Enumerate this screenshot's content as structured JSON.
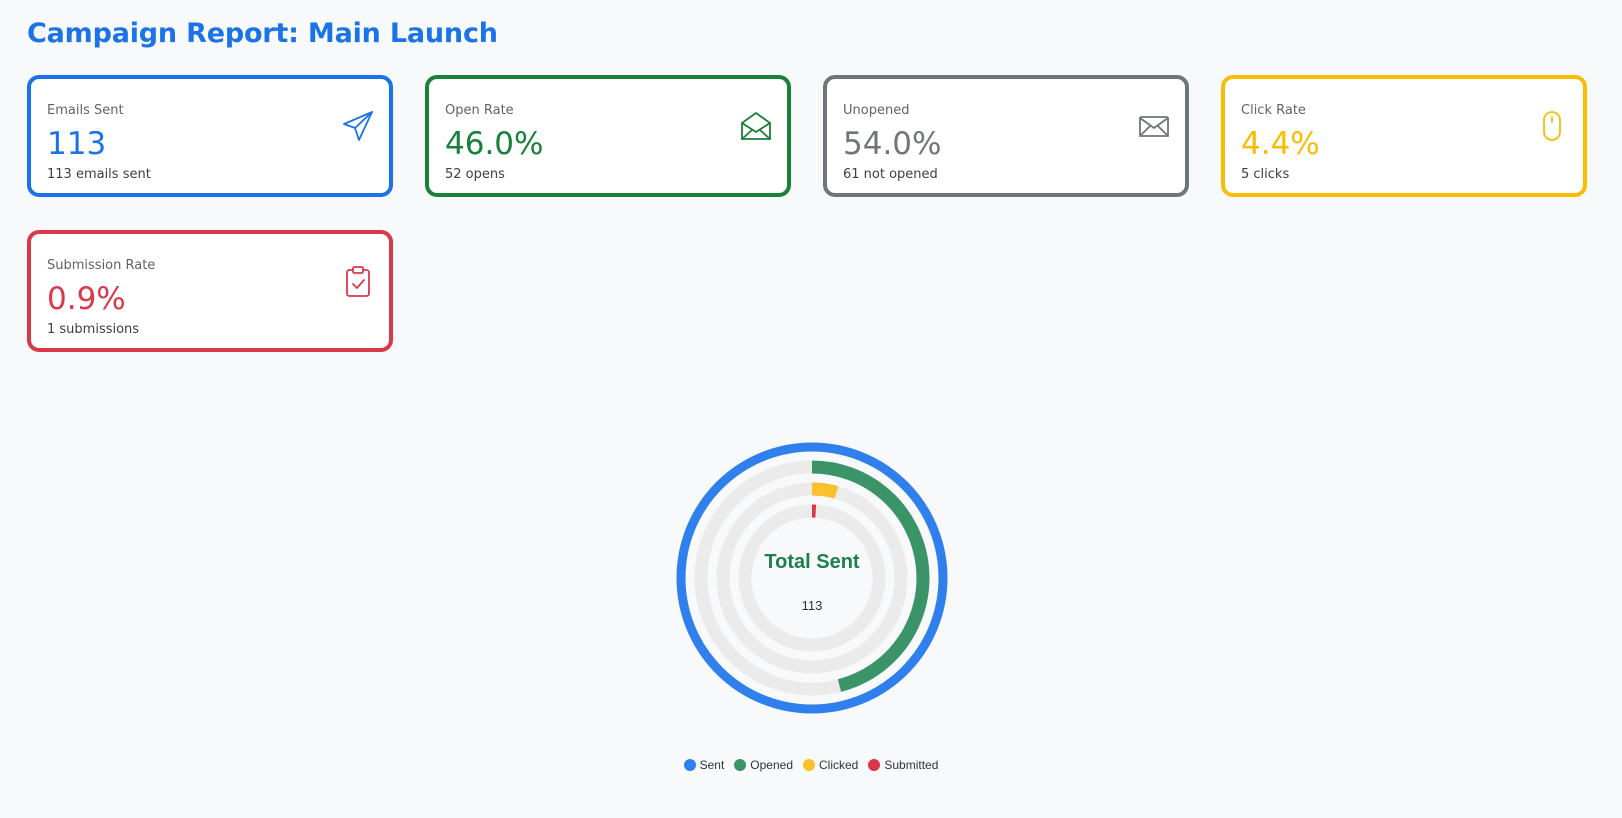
{
  "header": {
    "title": "Campaign Report: Main Launch"
  },
  "cards": [
    {
      "label": "Emails Sent",
      "value": "113",
      "sub": "113 emails sent",
      "icon": "paper-plane-icon",
      "color": "#1a73e8"
    },
    {
      "label": "Open Rate",
      "value": "46.0%",
      "sub": "52 opens",
      "icon": "open-envelope-icon",
      "color": "#188038"
    },
    {
      "label": "Unopened",
      "value": "54.0%",
      "sub": "61 not opened",
      "icon": "closed-envelope-icon",
      "color": "#70757a"
    },
    {
      "label": "Click Rate",
      "value": "4.4%",
      "sub": "5 clicks",
      "icon": "mouse-icon",
      "color": "#fbbc04"
    },
    {
      "label": "Submission Rate",
      "value": "0.9%",
      "sub": "1 submissions",
      "icon": "clipboard-check-icon",
      "color": "#d93848"
    }
  ],
  "chart_data": {
    "type": "pie",
    "title": "Total Sent",
    "center_value": "113",
    "max": 113,
    "series": [
      {
        "name": "Sent",
        "value": 113,
        "color": "#2f80ed"
      },
      {
        "name": "Opened",
        "value": 52,
        "color": "#3a9468"
      },
      {
        "name": "Clicked",
        "value": 5,
        "color": "#fbc02d"
      },
      {
        "name": "Submitted",
        "value": 1,
        "color": "#dc3545"
      }
    ],
    "track_color": "#ebebeb",
    "legend_position": "bottom"
  }
}
